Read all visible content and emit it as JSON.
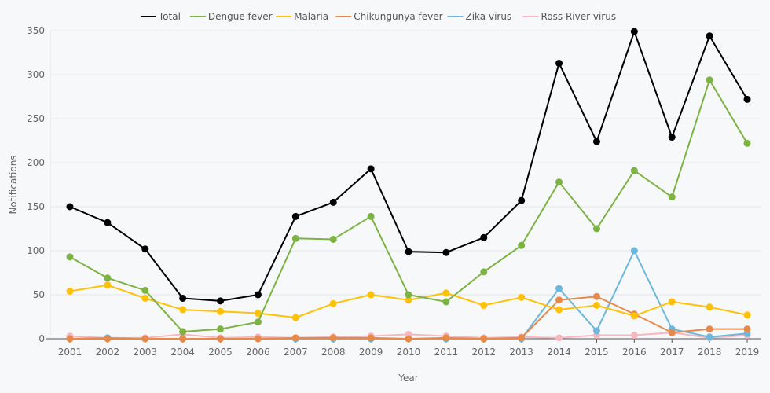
{
  "chart_data": {
    "type": "line",
    "title": "",
    "xlabel": "Year",
    "ylabel": "Notifications",
    "ylim": [
      0,
      350
    ],
    "yticks": [
      0,
      50,
      100,
      150,
      200,
      250,
      300,
      350
    ],
    "grid": true,
    "legend_position": "top-center",
    "x": [
      "2001",
      "2002",
      "2003",
      "2004",
      "2005",
      "2006",
      "2007",
      "2008",
      "2009",
      "2010",
      "2011",
      "2012",
      "2013",
      "2014",
      "2015",
      "2016",
      "2017",
      "2018",
      "2019"
    ],
    "series": [
      {
        "name": "Total",
        "color": "#000000",
        "values": [
          150,
          132,
          102,
          46,
          43,
          50,
          139,
          155,
          193,
          99,
          98,
          115,
          157,
          313,
          224,
          349,
          229,
          344,
          272
        ]
      },
      {
        "name": "Dengue fever",
        "color": "#7cb342",
        "values": [
          93,
          69,
          55,
          8,
          11,
          19,
          114,
          113,
          139,
          50,
          42,
          76,
          106,
          178,
          125,
          191,
          161,
          294,
          222
        ]
      },
      {
        "name": "Malaria",
        "color": "#ffc107",
        "values": [
          54,
          61,
          46,
          33,
          31,
          29,
          24,
          40,
          50,
          44,
          52,
          38,
          47,
          33,
          38,
          26,
          42,
          36,
          27
        ]
      },
      {
        "name": "Chikungunya fever",
        "color": "#e8894a",
        "values": [
          0,
          0,
          0,
          0,
          0,
          0,
          1,
          1,
          1,
          0,
          1,
          0,
          1,
          44,
          48,
          28,
          7,
          11,
          11
        ]
      },
      {
        "name": "Zika virus",
        "color": "#6bb8dc",
        "values": [
          0,
          1,
          0,
          0,
          0,
          0,
          0,
          0,
          0,
          0,
          0,
          0,
          0,
          57,
          9,
          100,
          11,
          2,
          6
        ]
      },
      {
        "name": "Ross River virus",
        "color": "#f6b8c0",
        "values": [
          3,
          1,
          1,
          5,
          1,
          2,
          1,
          2,
          3,
          5,
          3,
          1,
          2,
          1,
          4,
          4,
          7,
          1,
          4
        ]
      }
    ]
  }
}
